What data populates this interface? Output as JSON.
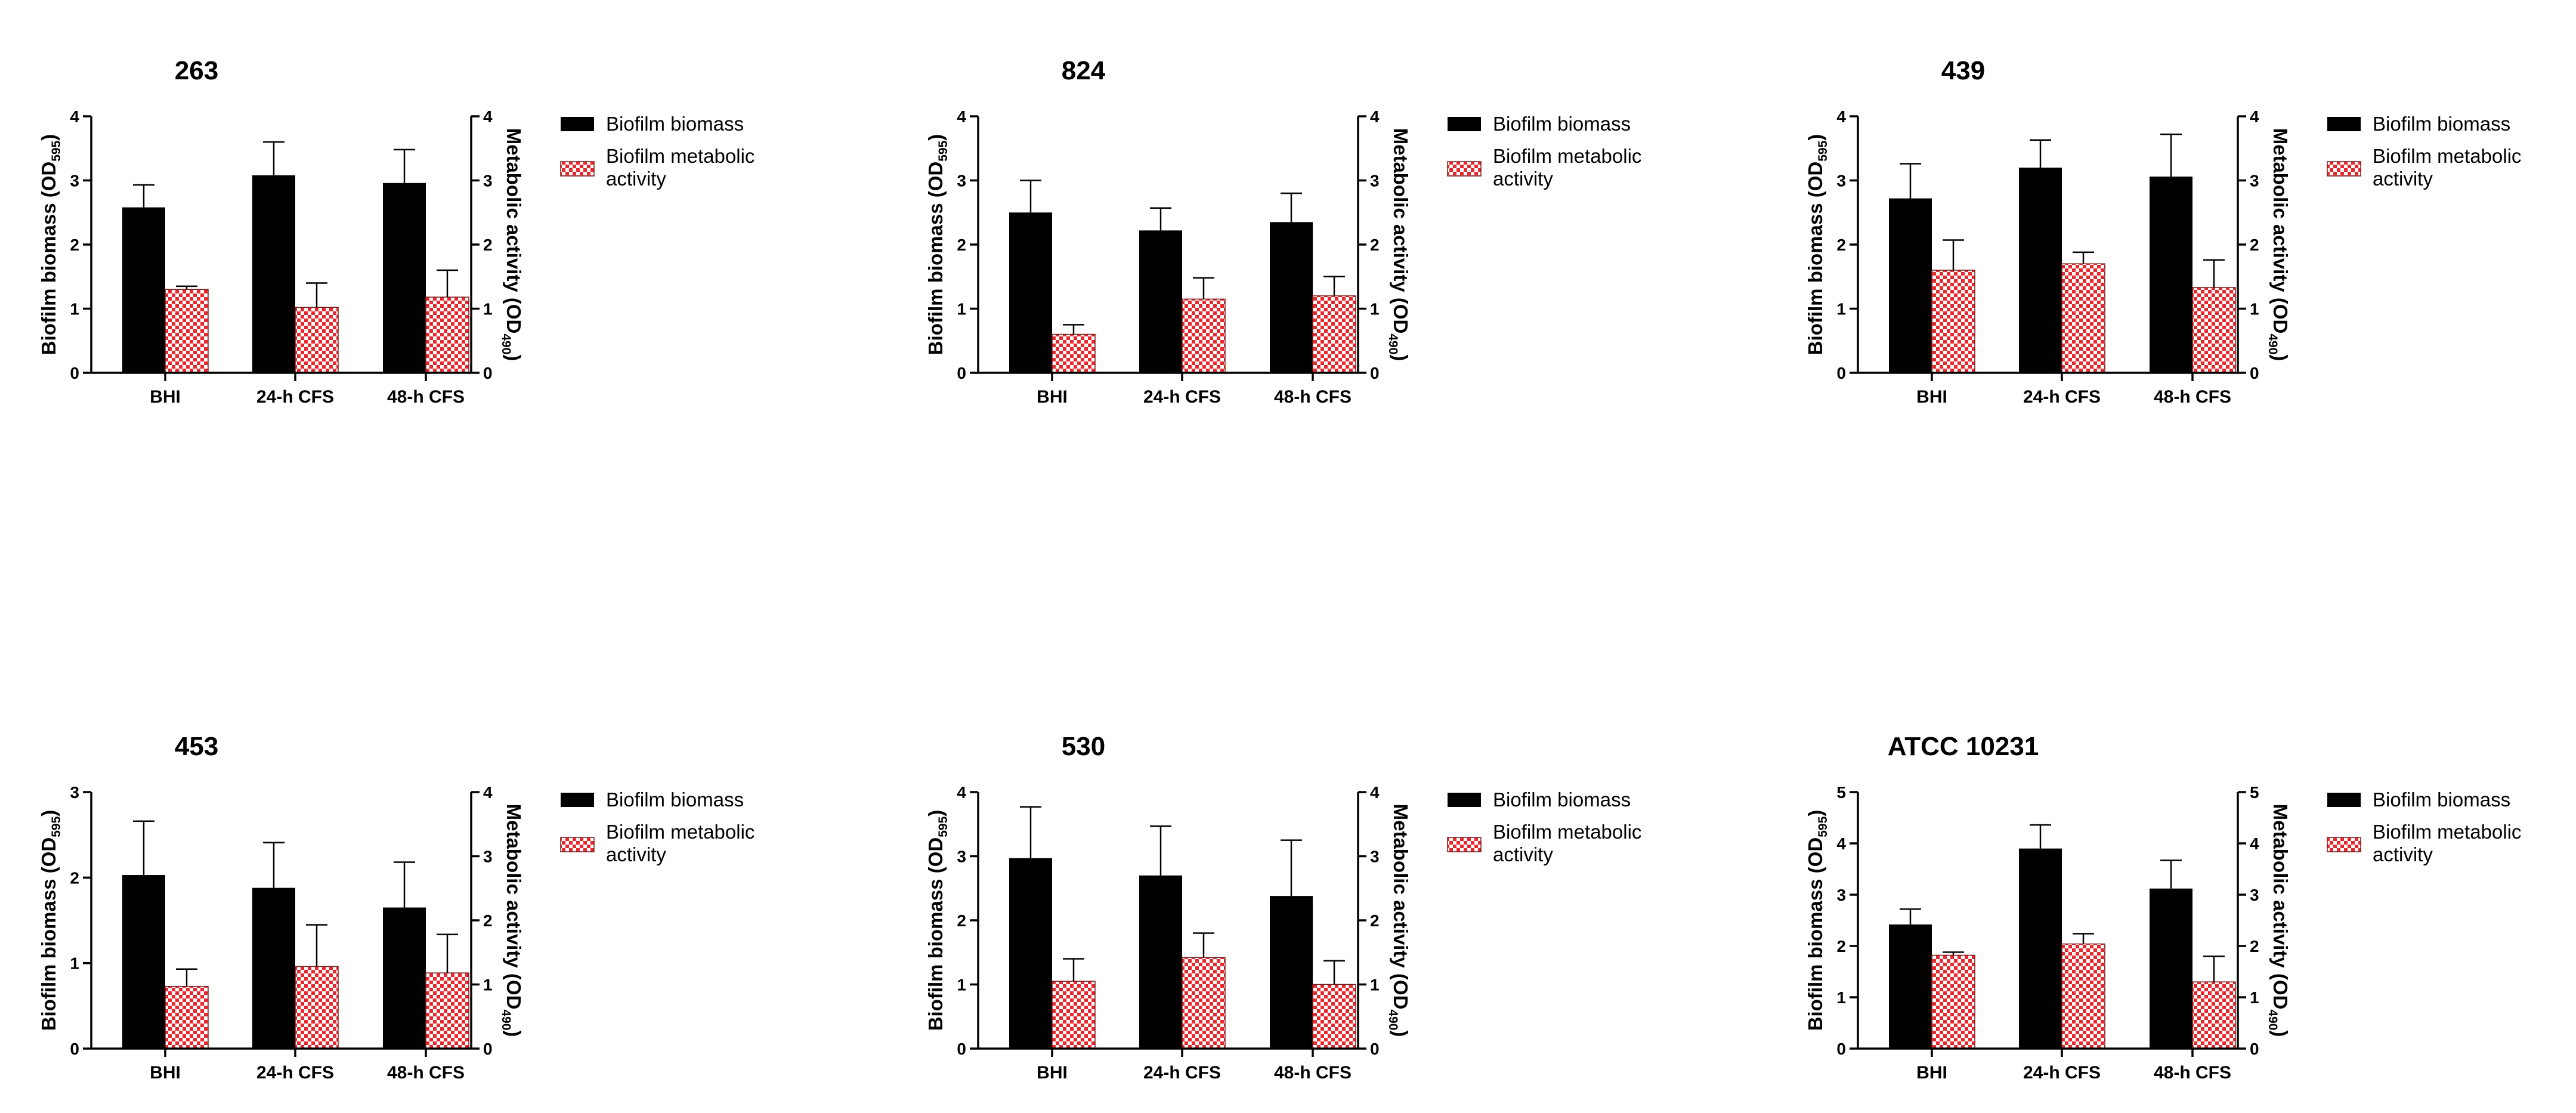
{
  "colors": {
    "biomass": "#000000",
    "metabolic_check": "#e8282d",
    "metabolic_light": "#ffffff",
    "axis": "#000000"
  },
  "chart_data": [
    {
      "type": "bar",
      "title": "263",
      "categories": [
        "BHI",
        "24-h CFS",
        "48-h CFS"
      ],
      "ylabel": {
        "main": "Biofilm biomass (OD",
        "sub": "595",
        "end": ")"
      },
      "y2label": {
        "main": "Metabolic activity (OD",
        "sub": "490",
        "end": ")"
      },
      "ylim": [
        0,
        4
      ],
      "y2lim": [
        0,
        4
      ],
      "yticks": [
        "0",
        "1",
        "2",
        "3",
        "4"
      ],
      "y2ticks": [
        "0",
        "1",
        "2",
        "3",
        "4"
      ],
      "legend": [
        "Biofilm biomass",
        "Biofilm metabolic",
        "activity"
      ],
      "series": [
        {
          "name": "Biofilm biomass",
          "axis": "left",
          "values": [
            2.58,
            3.08,
            2.96
          ],
          "errors": [
            0.35,
            0.52,
            0.52
          ]
        },
        {
          "name": "Biofilm metabolic activity",
          "axis": "right",
          "values": [
            1.3,
            1.02,
            1.18
          ],
          "errors": [
            0.05,
            0.38,
            0.42
          ]
        }
      ]
    },
    {
      "type": "bar",
      "title": "824",
      "categories": [
        "BHI",
        "24-h CFS",
        "48-h CFS"
      ],
      "ylabel": {
        "main": "Biofilm biomass (OD",
        "sub": "595",
        "end": ")"
      },
      "y2label": {
        "main": "Metabolic activity (OD",
        "sub": "490",
        "end": ")"
      },
      "ylim": [
        0,
        4
      ],
      "y2lim": [
        0,
        4
      ],
      "yticks": [
        "0",
        "1",
        "2",
        "3",
        "4"
      ],
      "y2ticks": [
        "0",
        "1",
        "2",
        "3",
        "4"
      ],
      "legend": [
        "Biofilm biomass",
        "Biofilm metabolic",
        "activity"
      ],
      "series": [
        {
          "name": "Biofilm biomass",
          "axis": "left",
          "values": [
            2.5,
            2.22,
            2.35
          ],
          "errors": [
            0.5,
            0.35,
            0.45
          ]
        },
        {
          "name": "Biofilm metabolic activity",
          "axis": "right",
          "values": [
            0.6,
            1.15,
            1.2
          ],
          "errors": [
            0.15,
            0.33,
            0.3
          ]
        }
      ]
    },
    {
      "type": "bar",
      "title": "439",
      "categories": [
        "BHI",
        "24-h CFS",
        "48-h CFS"
      ],
      "ylabel": {
        "main": "Biofilm biomass (OD",
        "sub": "595",
        "end": ")"
      },
      "y2label": {
        "main": "Metabolic activity (OD",
        "sub": "490",
        "end": ")"
      },
      "ylim": [
        0,
        4
      ],
      "y2lim": [
        0,
        4
      ],
      "yticks": [
        "0",
        "1",
        "2",
        "3",
        "4"
      ],
      "y2ticks": [
        "0",
        "1",
        "2",
        "3",
        "4"
      ],
      "legend": [
        "Biofilm biomass",
        "Biofilm metabolic",
        "activity"
      ],
      "series": [
        {
          "name": "Biofilm biomass",
          "axis": "left",
          "values": [
            2.72,
            3.2,
            3.06
          ],
          "errors": [
            0.54,
            0.43,
            0.66
          ]
        },
        {
          "name": "Biofilm metabolic activity",
          "axis": "right",
          "values": [
            1.6,
            1.7,
            1.33
          ],
          "errors": [
            0.47,
            0.18,
            0.43
          ]
        }
      ]
    },
    {
      "type": "bar",
      "title": "453",
      "categories": [
        "BHI",
        "24-h CFS",
        "48-h CFS"
      ],
      "ylabel": {
        "main": "Biofilm biomass (OD",
        "sub": "595",
        "end": ")"
      },
      "y2label": {
        "main": "Metabolic activity (OD",
        "sub": "490",
        "end": ")"
      },
      "ylim": [
        0,
        3
      ],
      "y2lim": [
        0,
        4
      ],
      "yticks": [
        "0",
        "1",
        "2",
        "3"
      ],
      "y2ticks": [
        "0",
        "1",
        "2",
        "3",
        "4"
      ],
      "legend": [
        "Biofilm biomass",
        "Biofilm metabolic",
        "activity"
      ],
      "series": [
        {
          "name": "Biofilm biomass",
          "axis": "left",
          "values": [
            2.03,
            1.88,
            1.65
          ],
          "errors": [
            0.63,
            0.53,
            0.53
          ]
        },
        {
          "name": "Biofilm metabolic activity",
          "axis": "right",
          "values": [
            0.97,
            1.28,
            1.18
          ],
          "errors": [
            0.27,
            0.65,
            0.6
          ]
        }
      ]
    },
    {
      "type": "bar",
      "title": "530",
      "categories": [
        "BHI",
        "24-h CFS",
        "48-h CFS"
      ],
      "ylabel": {
        "main": "Biofilm biomass (OD",
        "sub": "595",
        "end": ")"
      },
      "y2label": {
        "main": "Metabolic activity (OD",
        "sub": "490",
        "end": ")"
      },
      "ylim": [
        0,
        4
      ],
      "y2lim": [
        0,
        4
      ],
      "yticks": [
        "0",
        "1",
        "2",
        "3",
        "4"
      ],
      "y2ticks": [
        "0",
        "1",
        "2",
        "3",
        "4"
      ],
      "legend": [
        "Biofilm biomass",
        "Biofilm metabolic",
        "activity"
      ],
      "series": [
        {
          "name": "Biofilm biomass",
          "axis": "left",
          "values": [
            2.97,
            2.7,
            2.38
          ],
          "errors": [
            0.8,
            0.77,
            0.87
          ]
        },
        {
          "name": "Biofilm metabolic activity",
          "axis": "right",
          "values": [
            1.05,
            1.42,
            1.0
          ],
          "errors": [
            0.35,
            0.38,
            0.37
          ]
        }
      ]
    },
    {
      "type": "bar",
      "title": "ATCC 10231",
      "categories": [
        "BHI",
        "24-h CFS",
        "48-h CFS"
      ],
      "ylabel": {
        "main": "Biofilm biomass (OD",
        "sub": "595",
        "end": ")"
      },
      "y2label": {
        "main": "Metabolic activity (OD",
        "sub": "490",
        "end": ")"
      },
      "ylim": [
        0,
        5
      ],
      "y2lim": [
        0,
        5
      ],
      "yticks": [
        "0",
        "1",
        "2",
        "3",
        "4",
        "5"
      ],
      "y2ticks": [
        "0",
        "1",
        "2",
        "3",
        "4",
        "5"
      ],
      "legend": [
        "Biofilm biomass",
        "Biofilm metabolic",
        "activity"
      ],
      "series": [
        {
          "name": "Biofilm biomass",
          "axis": "left",
          "values": [
            2.42,
            3.9,
            3.12
          ],
          "errors": [
            0.3,
            0.46,
            0.55
          ]
        },
        {
          "name": "Biofilm metabolic activity",
          "axis": "right",
          "values": [
            1.82,
            2.04,
            1.3
          ],
          "errors": [
            0.06,
            0.2,
            0.5
          ]
        }
      ]
    }
  ]
}
